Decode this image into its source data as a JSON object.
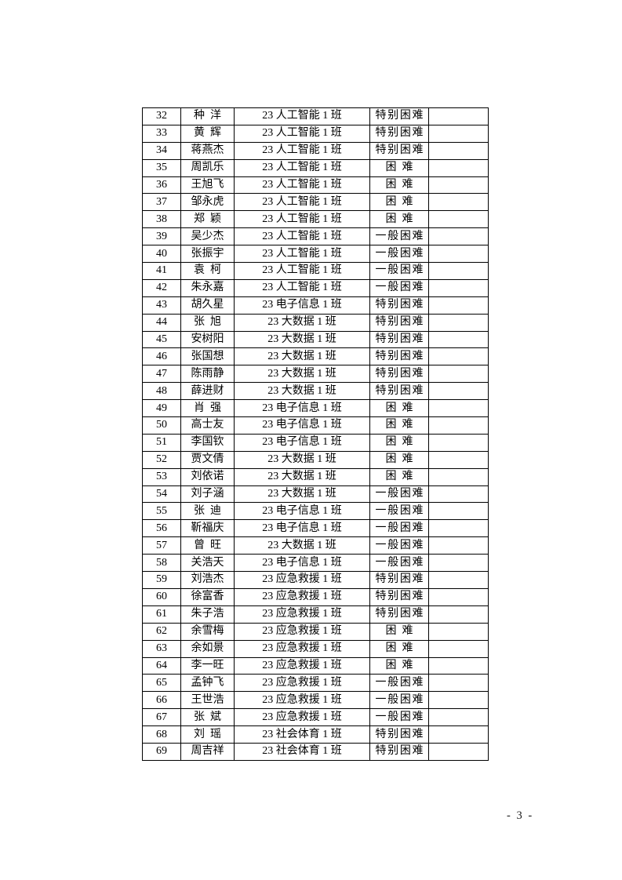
{
  "page": {
    "footer_page_label": "- 3 -"
  },
  "table": {
    "rows": [
      {
        "no": "32",
        "name": "种洋",
        "class": "23 人工智能 1 班",
        "level": "特别困难",
        "note": ""
      },
      {
        "no": "33",
        "name": "黄辉",
        "class": "23 人工智能 1 班",
        "level": "特别困难",
        "note": ""
      },
      {
        "no": "34",
        "name": "蒋燕杰",
        "class": "23 人工智能 1 班",
        "level": "特别困难",
        "note": ""
      },
      {
        "no": "35",
        "name": "周凯乐",
        "class": "23 人工智能 1 班",
        "level": "困难",
        "note": ""
      },
      {
        "no": "36",
        "name": "王旭飞",
        "class": "23 人工智能 1 班",
        "level": "困难",
        "note": ""
      },
      {
        "no": "37",
        "name": "邹永虎",
        "class": "23 人工智能 1 班",
        "level": "困难",
        "note": ""
      },
      {
        "no": "38",
        "name": "郑颖",
        "class": "23 人工智能 1 班",
        "level": "困难",
        "note": ""
      },
      {
        "no": "39",
        "name": "吴少杰",
        "class": "23 人工智能 1 班",
        "level": "一般困难",
        "note": ""
      },
      {
        "no": "40",
        "name": "张振宇",
        "class": "23 人工智能 1 班",
        "level": "一般困难",
        "note": ""
      },
      {
        "no": "41",
        "name": "袁柯",
        "class": "23 人工智能 1 班",
        "level": "一般困难",
        "note": ""
      },
      {
        "no": "42",
        "name": "朱永嘉",
        "class": "23 人工智能 1 班",
        "level": "一般困难",
        "note": ""
      },
      {
        "no": "43",
        "name": "胡久星",
        "class": "23 电子信息 1 班",
        "level": "特别困难",
        "note": ""
      },
      {
        "no": "44",
        "name": "张旭",
        "class": "23 大数据 1 班",
        "level": "特别困难",
        "note": ""
      },
      {
        "no": "45",
        "name": "安树阳",
        "class": "23 大数据 1 班",
        "level": "特别困难",
        "note": ""
      },
      {
        "no": "46",
        "name": "张国想",
        "class": "23 大数据 1 班",
        "level": "特别困难",
        "note": ""
      },
      {
        "no": "47",
        "name": "陈雨静",
        "class": "23 大数据 1 班",
        "level": "特别困难",
        "note": ""
      },
      {
        "no": "48",
        "name": "薛进财",
        "class": "23 大数据 1 班",
        "level": "特别困难",
        "note": ""
      },
      {
        "no": "49",
        "name": "肖强",
        "class": "23 电子信息 1 班",
        "level": "困难",
        "note": ""
      },
      {
        "no": "50",
        "name": "高士友",
        "class": "23 电子信息 1 班",
        "level": "困难",
        "note": ""
      },
      {
        "no": "51",
        "name": "李国钦",
        "class": "23 电子信息 1 班",
        "level": "困难",
        "note": ""
      },
      {
        "no": "52",
        "name": "贾文倩",
        "class": "23 大数据 1 班",
        "level": "困难",
        "note": ""
      },
      {
        "no": "53",
        "name": "刘依诺",
        "class": "23 大数据 1 班",
        "level": "困难",
        "note": ""
      },
      {
        "no": "54",
        "name": "刘子涵",
        "class": "23 大数据 1 班",
        "level": "一般困难",
        "note": ""
      },
      {
        "no": "55",
        "name": "张迪",
        "class": "23 电子信息 1 班",
        "level": "一般困难",
        "note": ""
      },
      {
        "no": "56",
        "name": "靳福庆",
        "class": "23 电子信息 1 班",
        "level": "一般困难",
        "note": ""
      },
      {
        "no": "57",
        "name": "曾旺",
        "class": "23 大数据 1 班",
        "level": "一般困难",
        "note": ""
      },
      {
        "no": "58",
        "name": "关浩天",
        "class": "23 电子信息 1 班",
        "level": "一般困难",
        "note": ""
      },
      {
        "no": "59",
        "name": "刘浩杰",
        "class": "23 应急救援 1 班",
        "level": "特别困难",
        "note": ""
      },
      {
        "no": "60",
        "name": "徐富香",
        "class": "23 应急救援 1 班",
        "level": "特别困难",
        "note": ""
      },
      {
        "no": "61",
        "name": "朱子浩",
        "class": "23 应急救援 1 班",
        "level": "特别困难",
        "note": ""
      },
      {
        "no": "62",
        "name": "余雪梅",
        "class": "23 应急救援 1 班",
        "level": "困难",
        "note": ""
      },
      {
        "no": "63",
        "name": "余如景",
        "class": "23 应急救援 1 班",
        "level": "困难",
        "note": ""
      },
      {
        "no": "64",
        "name": "李一旺",
        "class": "23 应急救援 1 班",
        "level": "困难",
        "note": ""
      },
      {
        "no": "65",
        "name": "孟钟飞",
        "class": "23 应急救援 1 班",
        "level": "一般困难",
        "note": ""
      },
      {
        "no": "66",
        "name": "王世浩",
        "class": "23 应急救援 1 班",
        "level": "一般困难",
        "note": ""
      },
      {
        "no": "67",
        "name": "张斌",
        "class": "23 应急救援 1 班",
        "level": "一般困难",
        "note": ""
      },
      {
        "no": "68",
        "name": "刘瑶",
        "class": "23 社会体育 1 班",
        "level": "特别困难",
        "note": ""
      },
      {
        "no": "69",
        "name": "周吉祥",
        "class": "23 社会体育 1 班",
        "level": "特别困难",
        "note": ""
      }
    ]
  }
}
